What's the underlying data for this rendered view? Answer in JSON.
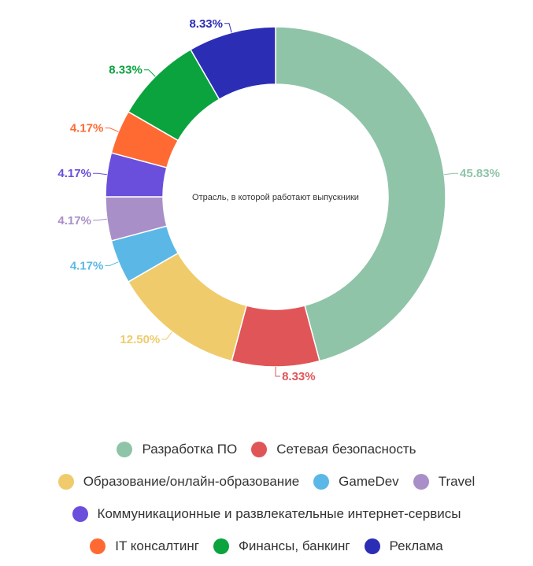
{
  "chart_data": {
    "type": "pie",
    "variant": "donut",
    "title": "Отрасль, в которой работают выпускники",
    "categories": [
      "Разработка ПО",
      "Сетевая безопасность",
      "Образование/онлайн-образование",
      "GameDev",
      "Travel",
      "Коммуникационные и развлекательные интернет-сервисы",
      "IT консалтинг",
      "Финансы, банкинг",
      "Реклама"
    ],
    "values": [
      45.83,
      8.33,
      12.5,
      4.17,
      4.17,
      4.17,
      4.17,
      8.33,
      8.33
    ],
    "data_labels": [
      "45.83%",
      "8.33%",
      "12.50%",
      "4.17%",
      "4.17%",
      "4.17%",
      "4.17%",
      "8.33%",
      "8.33%"
    ],
    "colors": [
      "#8fc4a8",
      "#e05558",
      "#efcb6b",
      "#5bb8e6",
      "#a98fc8",
      "#6a4fdc",
      "#ff6a33",
      "#0aa33e",
      "#2b2eb5"
    ],
    "legend_position": "bottom",
    "legend_rows": [
      [
        0,
        1
      ],
      [
        2,
        3,
        4
      ],
      [
        5
      ],
      [
        6,
        7,
        8
      ]
    ]
  }
}
